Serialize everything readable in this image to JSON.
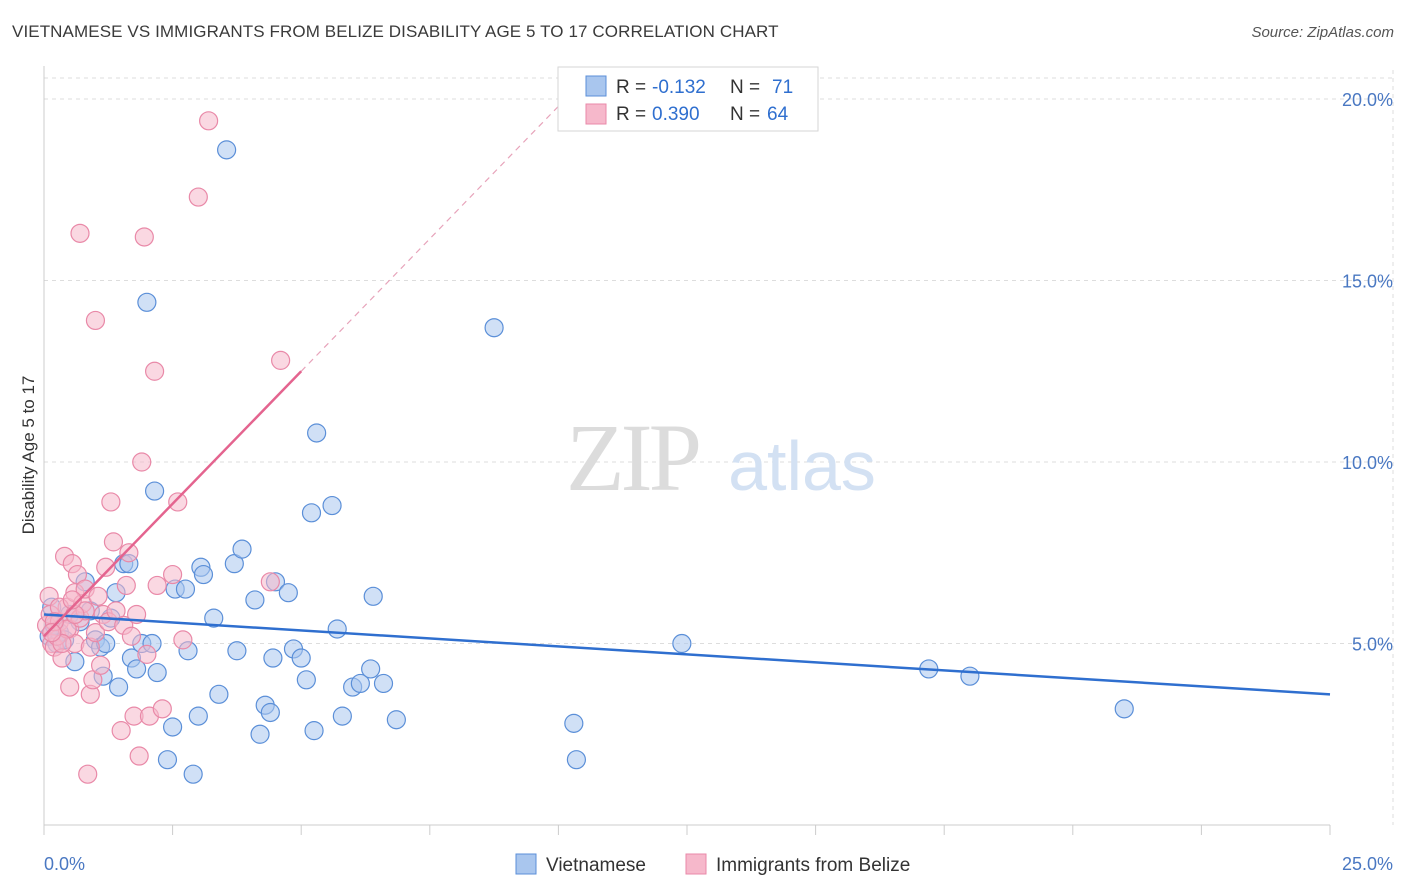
{
  "header": {
    "title": "VIETNAMESE VS IMMIGRANTS FROM BELIZE DISABILITY AGE 5 TO 17 CORRELATION CHART",
    "source": "Source: ZipAtlas.com"
  },
  "watermark": {
    "zip": "ZIP",
    "atlas": "atlas"
  },
  "colors": {
    "blue_fill": "#a9c6ee",
    "blue_stroke": "#5b8fd8",
    "blue_line": "#2f6fcf",
    "pink_fill": "#f6b8cb",
    "pink_stroke": "#e989a8",
    "pink_line": "#e4648f",
    "grid": "#dddddd",
    "axis_text": "#4a78c2"
  },
  "chart_data": {
    "type": "scatter",
    "title": "VIETNAMESE VS IMMIGRANTS FROM BELIZE DISABILITY AGE 5 TO 17 CORRELATION CHART",
    "xlabel": "",
    "ylabel": "Disability Age 5 to 17",
    "xlim": [
      0,
      25
    ],
    "ylim": [
      0,
      20.8
    ],
    "x_tick_labels": [
      "0.0%",
      "25.0%"
    ],
    "y_ticks": [
      5,
      10,
      15,
      20
    ],
    "y_tick_labels": [
      "5.0%",
      "10.0%",
      "15.0%",
      "20.0%"
    ],
    "grid": true,
    "legend": [
      {
        "name": "Vietnamese",
        "r_label": "R =",
        "r": "-0.132",
        "n_label": "N =",
        "n": "71"
      },
      {
        "name": "Immigrants from Belize",
        "r_label": "R =",
        "r": "0.390",
        "n_label": "N =",
        "n": "64"
      }
    ],
    "series": [
      {
        "name": "Vietnamese",
        "trend": {
          "x": [
            0,
            25
          ],
          "y": [
            5.8,
            3.6
          ],
          "dashed_extension": false
        },
        "points": [
          [
            0.1,
            5.2
          ],
          [
            0.15,
            6.0
          ],
          [
            0.2,
            5.5
          ],
          [
            0.25,
            5.0
          ],
          [
            0.3,
            5.3
          ],
          [
            0.4,
            5.1
          ],
          [
            0.5,
            5.8
          ],
          [
            0.6,
            4.5
          ],
          [
            0.7,
            5.6
          ],
          [
            0.8,
            6.7
          ],
          [
            0.9,
            5.9
          ],
          [
            1.0,
            5.1
          ],
          [
            1.1,
            4.9
          ],
          [
            1.15,
            4.1
          ],
          [
            1.2,
            5.0
          ],
          [
            1.3,
            5.7
          ],
          [
            1.4,
            6.4
          ],
          [
            1.45,
            3.8
          ],
          [
            1.55,
            7.2
          ],
          [
            1.65,
            7.2
          ],
          [
            1.7,
            4.6
          ],
          [
            1.8,
            4.3
          ],
          [
            1.9,
            5.0
          ],
          [
            2.0,
            14.4
          ],
          [
            2.1,
            5.0
          ],
          [
            2.15,
            9.2
          ],
          [
            2.2,
            4.2
          ],
          [
            2.4,
            1.8
          ],
          [
            2.5,
            2.7
          ],
          [
            2.55,
            6.5
          ],
          [
            2.75,
            6.5
          ],
          [
            2.8,
            4.8
          ],
          [
            2.9,
            1.4
          ],
          [
            3.0,
            3.0
          ],
          [
            3.05,
            7.1
          ],
          [
            3.1,
            6.9
          ],
          [
            3.3,
            5.7
          ],
          [
            3.4,
            3.6
          ],
          [
            3.55,
            18.6
          ],
          [
            3.7,
            7.2
          ],
          [
            3.75,
            4.8
          ],
          [
            3.85,
            7.6
          ],
          [
            4.1,
            6.2
          ],
          [
            4.2,
            2.5
          ],
          [
            4.3,
            3.3
          ],
          [
            4.4,
            3.1
          ],
          [
            4.45,
            4.6
          ],
          [
            4.5,
            6.7
          ],
          [
            4.75,
            6.4
          ],
          [
            4.85,
            4.85
          ],
          [
            5.0,
            4.6
          ],
          [
            5.1,
            4.0
          ],
          [
            5.2,
            8.6
          ],
          [
            5.25,
            2.6
          ],
          [
            5.3,
            10.8
          ],
          [
            5.6,
            8.8
          ],
          [
            5.7,
            5.4
          ],
          [
            5.8,
            3.0
          ],
          [
            6.0,
            3.8
          ],
          [
            6.15,
            3.9
          ],
          [
            6.35,
            4.3
          ],
          [
            6.4,
            6.3
          ],
          [
            6.6,
            3.9
          ],
          [
            6.85,
            2.9
          ],
          [
            8.75,
            13.7
          ],
          [
            10.3,
            2.8
          ],
          [
            10.35,
            1.8
          ],
          [
            12.4,
            5.0
          ],
          [
            17.2,
            4.3
          ],
          [
            18.0,
            4.1
          ],
          [
            21.0,
            3.2
          ]
        ]
      },
      {
        "name": "Immigrants from Belize",
        "trend": {
          "x": [
            0,
            5.0
          ],
          "y": [
            5.2,
            12.5
          ],
          "dashed_extension": true,
          "dash_to": [
            10.0,
            19.8
          ]
        },
        "points": [
          [
            0.05,
            5.5
          ],
          [
            0.1,
            6.3
          ],
          [
            0.12,
            5.8
          ],
          [
            0.15,
            5.0
          ],
          [
            0.2,
            4.9
          ],
          [
            0.25,
            5.2
          ],
          [
            0.3,
            5.6
          ],
          [
            0.35,
            4.6
          ],
          [
            0.4,
            7.4
          ],
          [
            0.45,
            6.0
          ],
          [
            0.5,
            5.4
          ],
          [
            0.5,
            3.8
          ],
          [
            0.55,
            7.2
          ],
          [
            0.6,
            6.4
          ],
          [
            0.6,
            5.0
          ],
          [
            0.65,
            6.9
          ],
          [
            0.7,
            5.7
          ],
          [
            0.7,
            16.3
          ],
          [
            0.75,
            6.1
          ],
          [
            0.8,
            6.5
          ],
          [
            0.8,
            5.9
          ],
          [
            0.85,
            1.4
          ],
          [
            0.9,
            4.9
          ],
          [
            0.9,
            3.6
          ],
          [
            0.95,
            4.0
          ],
          [
            1.0,
            13.9
          ],
          [
            1.0,
            5.3
          ],
          [
            1.05,
            6.3
          ],
          [
            1.1,
            4.4
          ],
          [
            1.15,
            5.8
          ],
          [
            1.2,
            7.1
          ],
          [
            1.25,
            5.6
          ],
          [
            1.3,
            8.9
          ],
          [
            1.35,
            7.8
          ],
          [
            1.4,
            5.9
          ],
          [
            1.5,
            2.6
          ],
          [
            1.55,
            5.5
          ],
          [
            1.6,
            6.6
          ],
          [
            1.65,
            7.5
          ],
          [
            1.7,
            5.2
          ],
          [
            1.75,
            3.0
          ],
          [
            1.8,
            5.8
          ],
          [
            1.85,
            1.9
          ],
          [
            1.9,
            10.0
          ],
          [
            1.95,
            16.2
          ],
          [
            2.0,
            4.7
          ],
          [
            2.05,
            3.0
          ],
          [
            2.15,
            12.5
          ],
          [
            2.2,
            6.6
          ],
          [
            2.3,
            3.2
          ],
          [
            2.5,
            6.9
          ],
          [
            2.6,
            8.9
          ],
          [
            2.7,
            5.1
          ],
          [
            3.0,
            17.3
          ],
          [
            3.2,
            19.4
          ],
          [
            4.4,
            6.7
          ],
          [
            4.6,
            12.8
          ],
          [
            0.3,
            6.0
          ],
          [
            0.45,
            5.4
          ],
          [
            0.2,
            5.6
          ],
          [
            0.35,
            5.0
          ],
          [
            0.6,
            5.8
          ],
          [
            0.15,
            5.3
          ],
          [
            0.55,
            6.2
          ]
        ]
      }
    ]
  }
}
